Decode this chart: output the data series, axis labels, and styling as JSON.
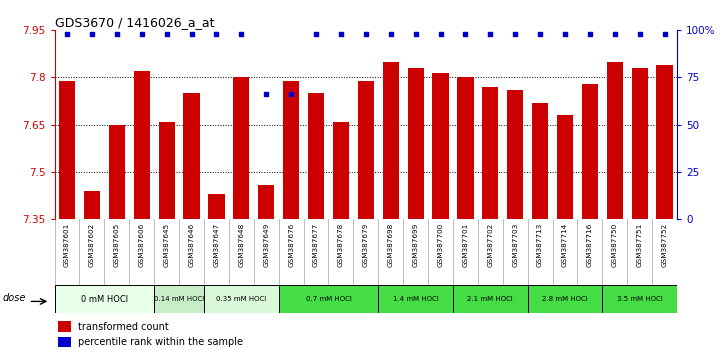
{
  "title": "GDS3670 / 1416026_a_at",
  "samples": [
    "GSM387601",
    "GSM387602",
    "GSM387605",
    "GSM387606",
    "GSM387645",
    "GSM387646",
    "GSM387647",
    "GSM387648",
    "GSM387649",
    "GSM387676",
    "GSM387677",
    "GSM387678",
    "GSM387679",
    "GSM387698",
    "GSM387699",
    "GSM387700",
    "GSM387701",
    "GSM387702",
    "GSM387703",
    "GSM387713",
    "GSM387714",
    "GSM387716",
    "GSM387750",
    "GSM387751",
    "GSM387752"
  ],
  "bar_values": [
    7.79,
    7.44,
    7.65,
    7.82,
    7.66,
    7.75,
    7.43,
    7.8,
    7.46,
    7.79,
    7.75,
    7.66,
    7.79,
    7.85,
    7.83,
    7.815,
    7.8,
    7.77,
    7.76,
    7.72,
    7.68,
    7.78,
    7.85,
    7.83,
    7.84
  ],
  "percentile_values": [
    98,
    98,
    98,
    98,
    98,
    98,
    98,
    98,
    66,
    66,
    98,
    98,
    98,
    98,
    98,
    98,
    98,
    98,
    98,
    98,
    98,
    98,
    98,
    98,
    98
  ],
  "dose_groups": [
    {
      "label": "0 mM HOCl",
      "start": 0,
      "end": 4,
      "color": "#e8ffe8"
    },
    {
      "label": "0.14 mM HOCl",
      "start": 4,
      "end": 6,
      "color": "#c8eec8"
    },
    {
      "label": "0.35 mM HOCl",
      "start": 6,
      "end": 9,
      "color": "#d8f8d8"
    },
    {
      "label": "0.7 mM HOCl",
      "start": 9,
      "end": 13,
      "color": "#44dd44"
    },
    {
      "label": "1.4 mM HOCl",
      "start": 13,
      "end": 16,
      "color": "#44dd44"
    },
    {
      "label": "2.1 mM HOCl",
      "start": 16,
      "end": 19,
      "color": "#44dd44"
    },
    {
      "label": "2.8 mM HOCl",
      "start": 19,
      "end": 22,
      "color": "#44dd44"
    },
    {
      "label": "3.5 mM HOCl",
      "start": 22,
      "end": 25,
      "color": "#44dd44"
    }
  ],
  "ylim_left": [
    7.35,
    7.95
  ],
  "yticks_left": [
    7.35,
    7.5,
    7.65,
    7.8,
    7.95
  ],
  "yticks_right": [
    0,
    25,
    50,
    75,
    100
  ],
  "ytick_labels_right": [
    "0",
    "25",
    "50",
    "75",
    "100%"
  ],
  "bar_color": "#cc0000",
  "percentile_color": "#0000cc",
  "background_color": "#ffffff",
  "left_tick_color": "#cc0000",
  "right_tick_color": "#0000cc",
  "legend_bar_label": "transformed count",
  "legend_pct_label": "percentile rank within the sample",
  "dose_label": "dose",
  "ymin": 7.35
}
